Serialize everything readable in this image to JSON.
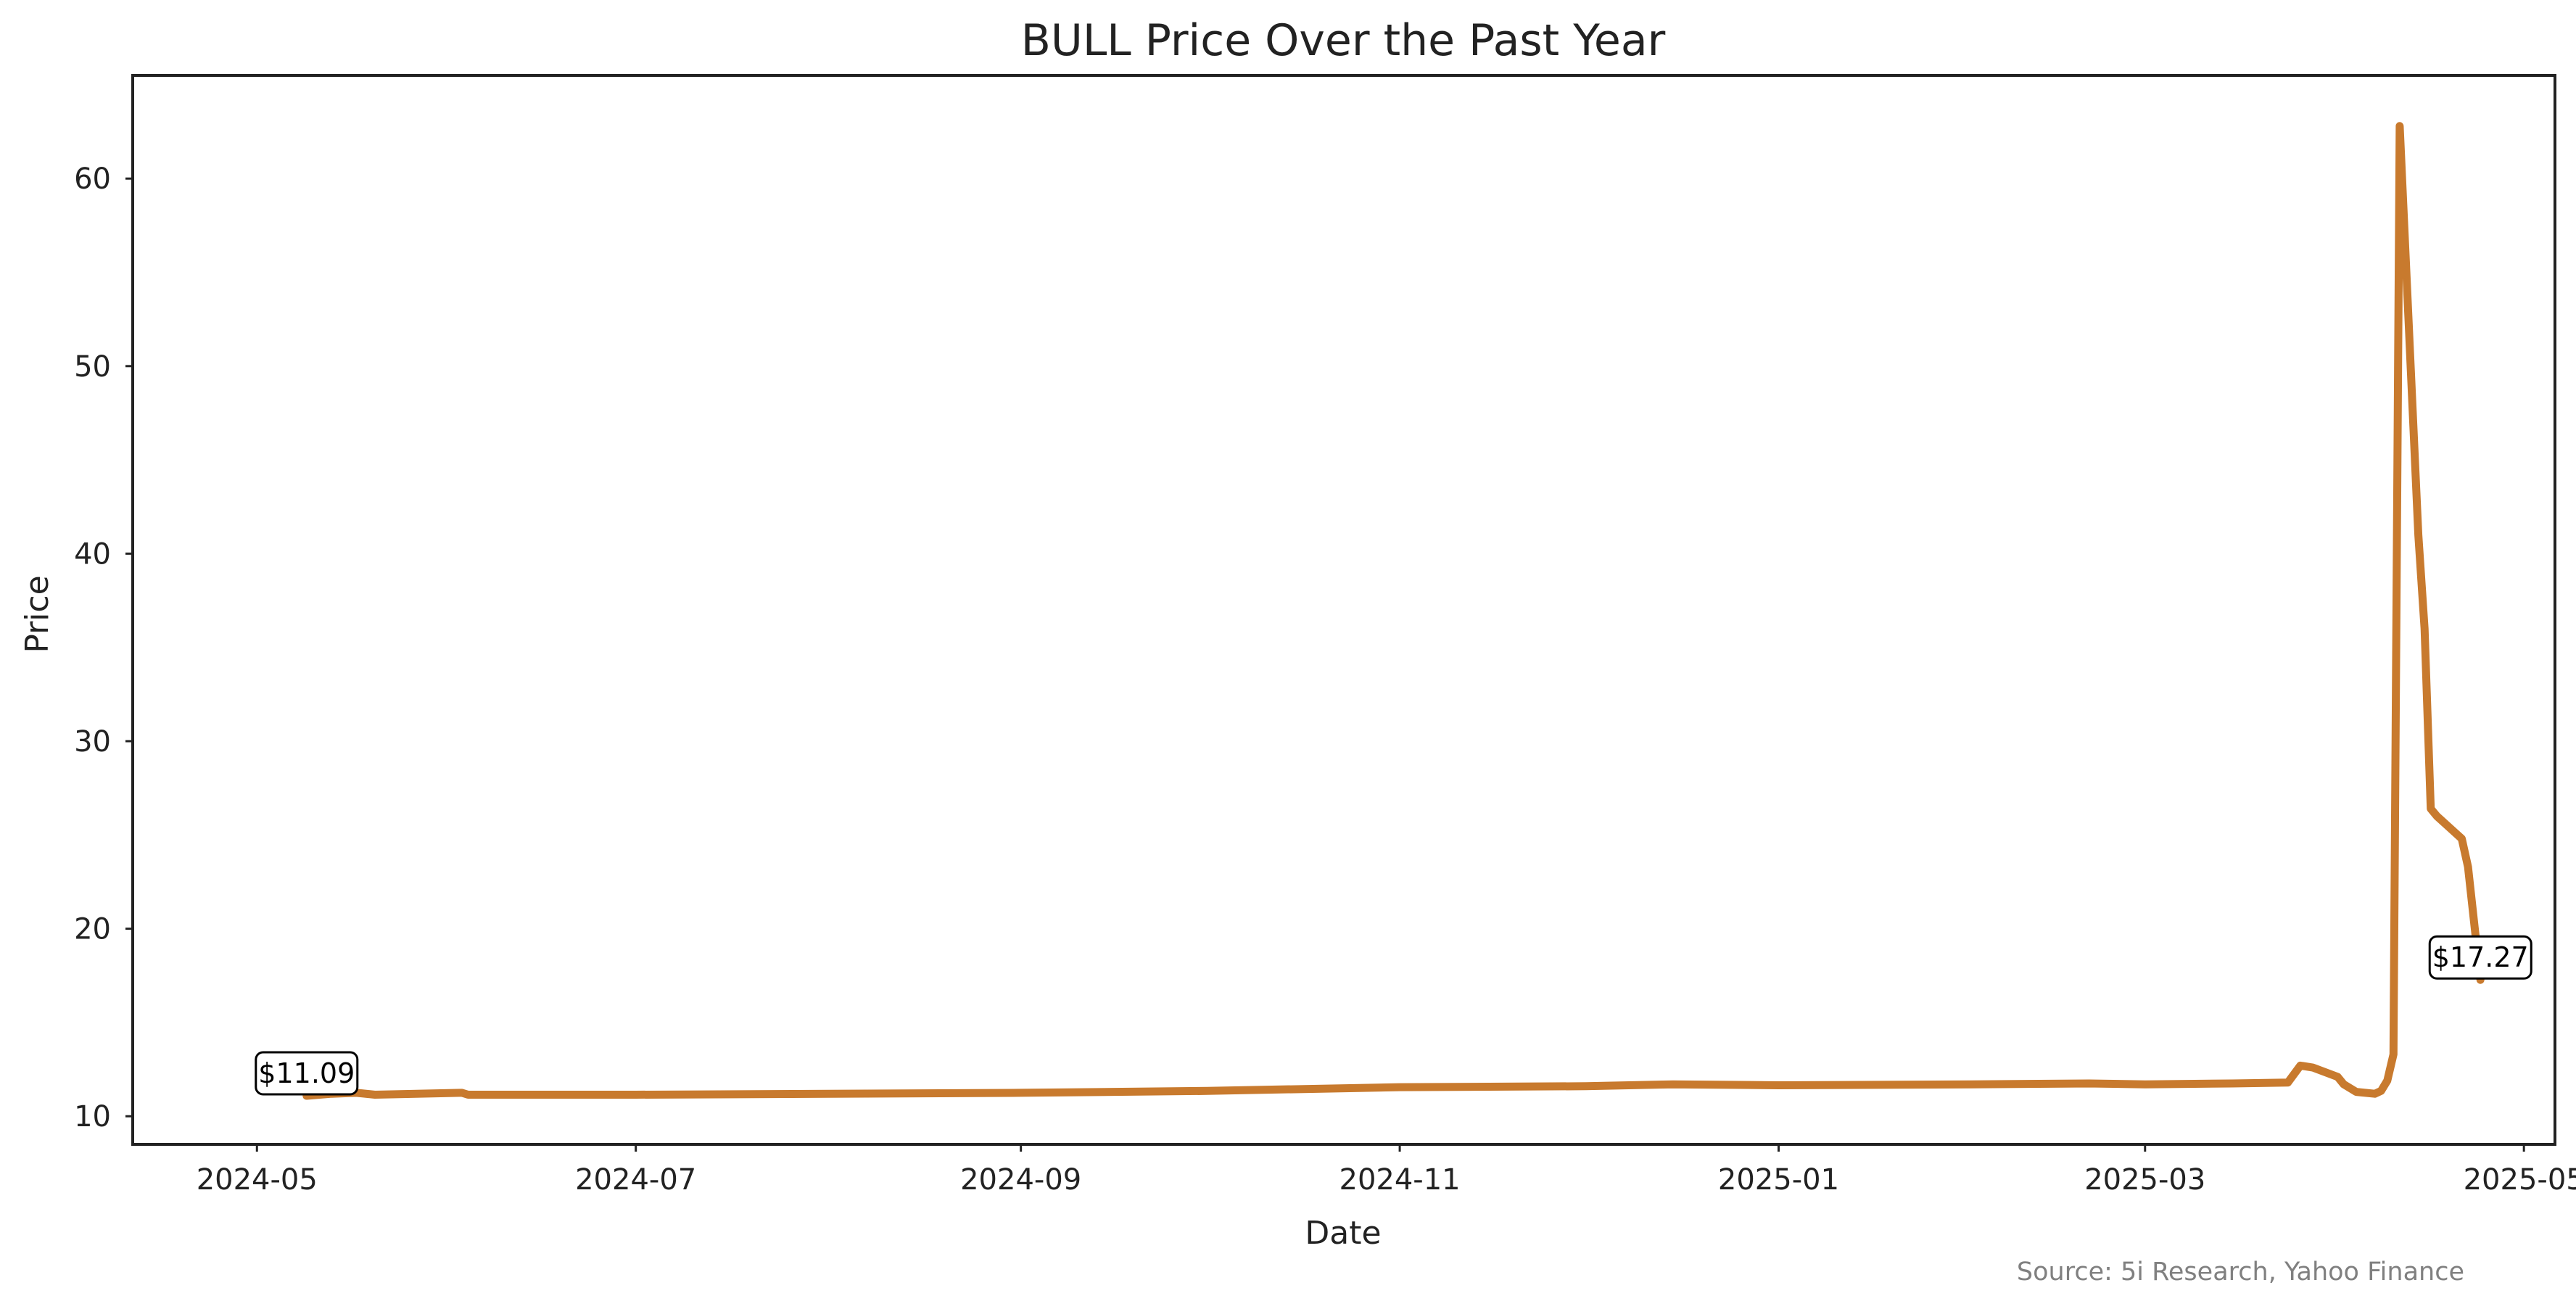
{
  "chart_data": {
    "type": "line",
    "title": "BULL Price Over the Past Year",
    "xlabel": "Date",
    "ylabel": "Price",
    "source": "Source: 5i Research, Yahoo Finance",
    "line_color": "#C87A2E",
    "grid": false,
    "legend": "none",
    "xlim": [
      "2024-04-11",
      "2025-05-06"
    ],
    "ylim": [
      8.5,
      65.5
    ],
    "x_ticks": [
      "2024-05-01",
      "2024-07-01",
      "2024-09-01",
      "2024-11-01",
      "2025-01-01",
      "2025-03-01",
      "2025-05-01"
    ],
    "x_tick_labels": [
      "2024-05",
      "2024-07",
      "2024-09",
      "2024-11",
      "2025-01",
      "2025-03",
      "2025-05"
    ],
    "y_ticks": [
      10,
      20,
      30,
      40,
      50,
      60
    ],
    "y_tick_labels": [
      "10",
      "20",
      "30",
      "40",
      "50",
      "60"
    ],
    "series": [
      {
        "x": [
          "2024-05-09",
          "2024-05-13",
          "2024-05-17",
          "2024-05-20",
          "2024-06-03",
          "2024-06-04",
          "2024-07-01",
          "2024-08-01",
          "2024-09-01",
          "2024-10-01",
          "2024-11-01",
          "2024-12-01",
          "2024-12-15",
          "2025-01-01",
          "2025-02-01",
          "2025-02-20",
          "2025-03-01",
          "2025-03-15",
          "2025-03-24",
          "2025-03-26",
          "2025-03-28",
          "2025-04-01",
          "2025-04-02",
          "2025-04-04",
          "2025-04-07",
          "2025-04-08",
          "2025-04-09",
          "2025-04-10",
          "2025-04-11",
          "2025-04-14",
          "2025-04-15",
          "2025-04-16",
          "2025-04-17",
          "2025-04-21",
          "2025-04-22",
          "2025-04-24"
        ],
        "y": [
          11.09,
          11.2,
          11.25,
          11.15,
          11.25,
          11.15,
          11.15,
          11.2,
          11.25,
          11.35,
          11.55,
          11.6,
          11.7,
          11.65,
          11.7,
          11.75,
          11.7,
          11.75,
          11.8,
          12.7,
          12.6,
          12.1,
          11.7,
          11.3,
          11.2,
          11.35,
          11.9,
          13.3,
          62.8,
          41.0,
          36.0,
          26.4,
          26.0,
          24.8,
          23.3,
          17.27
        ]
      }
    ],
    "annotations": [
      {
        "x": "2024-05-09",
        "y": 11.09,
        "label": "$11.09"
      },
      {
        "x": "2025-04-24",
        "y": 17.27,
        "label": "$17.27"
      }
    ]
  }
}
